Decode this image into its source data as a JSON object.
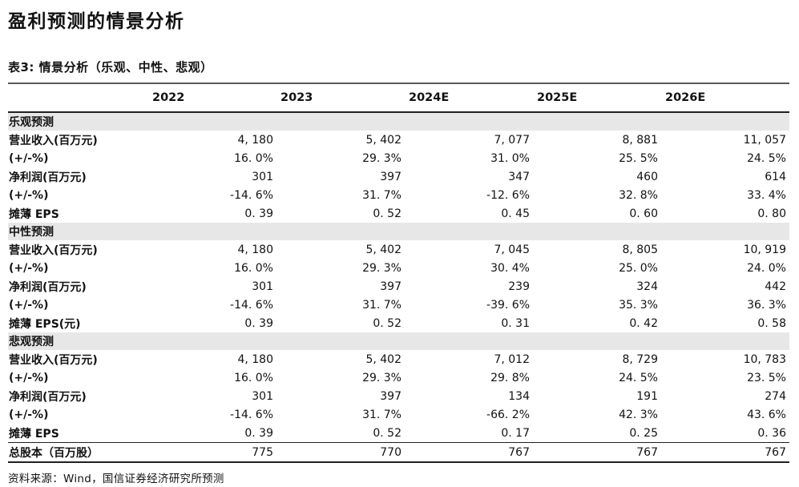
{
  "page": {
    "title": "盈利预测的情景分析",
    "caption": "表3: 情景分析（乐观、中性、悲观）",
    "source": "资料来源：Wind，国信证券经济研究所预测"
  },
  "table": {
    "columns": [
      "2022",
      "2023",
      "2024E",
      "2025E",
      "2026E"
    ],
    "sections": [
      {
        "header": "乐观预测",
        "rows": [
          {
            "label": "营业收入(百万元)",
            "values": [
              "4, 180",
              "5, 402",
              "7, 077",
              "8, 881",
              "11, 057"
            ]
          },
          {
            "label": "(+/-%)",
            "values": [
              "16. 0%",
              "29. 3%",
              "31. 0%",
              "25. 5%",
              "24. 5%"
            ]
          },
          {
            "label": "净利润(百万元)",
            "values": [
              "301",
              "397",
              "347",
              "460",
              "614"
            ]
          },
          {
            "label": "(+/-%)",
            "values": [
              "-14. 6%",
              "31. 7%",
              "-12. 6%",
              "32. 8%",
              "33. 4%"
            ]
          },
          {
            "label": "摊薄 EPS",
            "values": [
              "0. 39",
              "0. 52",
              "0. 45",
              "0. 60",
              "0. 80"
            ]
          }
        ]
      },
      {
        "header": "中性预测",
        "rows": [
          {
            "label": "营业收入(百万元)",
            "values": [
              "4, 180",
              "5, 402",
              "7, 045",
              "8, 805",
              "10, 919"
            ]
          },
          {
            "label": "(+/-%)",
            "values": [
              "16. 0%",
              "29. 3%",
              "30. 4%",
              "25. 0%",
              "24. 0%"
            ]
          },
          {
            "label": "净利润(百万元)",
            "values": [
              "301",
              "397",
              "239",
              "324",
              "442"
            ]
          },
          {
            "label": "(+/-%)",
            "values": [
              "-14. 6%",
              "31. 7%",
              "-39. 6%",
              "35. 3%",
              "36. 3%"
            ]
          },
          {
            "label": "摊薄 EPS(元)",
            "values": [
              "0. 39",
              "0. 52",
              "0. 31",
              "0. 42",
              "0. 58"
            ]
          }
        ]
      },
      {
        "header": "悲观预测",
        "rows": [
          {
            "label": "营业收入(百万元)",
            "values": [
              "4, 180",
              "5, 402",
              "7, 012",
              "8, 729",
              "10, 783"
            ]
          },
          {
            "label": "(+/-%)",
            "values": [
              "16. 0%",
              "29. 3%",
              "29. 8%",
              "24. 5%",
              "23. 5%"
            ]
          },
          {
            "label": "净利润(百万元)",
            "values": [
              "301",
              "397",
              "134",
              "191",
              "274"
            ]
          },
          {
            "label": "(+/-%)",
            "values": [
              "-14. 6%",
              "31. 7%",
              "-66. 2%",
              "42. 3%",
              "43. 6%"
            ]
          },
          {
            "label": "摊薄 EPS",
            "values": [
              "0. 39",
              "0. 52",
              "0. 17",
              "0. 25",
              "0. 36"
            ]
          }
        ]
      }
    ],
    "total_row": {
      "label": "总股本（百万股）",
      "values": [
        "775",
        "770",
        "767",
        "767",
        "767"
      ]
    }
  },
  "colors": {
    "section_band": "#e7e7e7",
    "table_top_rule": "#58595b",
    "rule": "#231f20",
    "text": "#121212"
  }
}
